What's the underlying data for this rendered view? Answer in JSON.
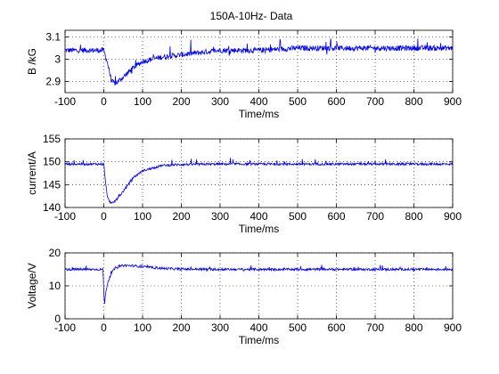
{
  "title": "150A-10Hz- Data",
  "chart_data": [
    {
      "type": "line",
      "title": "150A-10Hz- Data",
      "xlabel": "Time/ms",
      "ylabel": "B /kG",
      "xlim": [
        -100,
        900
      ],
      "ylim": [
        2.85,
        3.13
      ],
      "xticks": [
        -100,
        0,
        100,
        200,
        300,
        400,
        500,
        600,
        700,
        800,
        900
      ],
      "yticks": [
        2.9,
        3.0,
        3.1
      ],
      "ytick_labels": [
        "2.9",
        "3",
        "3.1"
      ],
      "grid": true,
      "series": [
        {
          "color": "#0000ff",
          "x": [
            -100,
            -50,
            0,
            10,
            20,
            30,
            50,
            75,
            100,
            150,
            200,
            300,
            400,
            500,
            600,
            700,
            800,
            900
          ],
          "y": [
            3.04,
            3.04,
            3.04,
            2.98,
            2.9,
            2.89,
            2.92,
            2.96,
            2.99,
            3.01,
            3.02,
            3.04,
            3.04,
            3.05,
            3.05,
            3.05,
            3.05,
            3.05
          ]
        }
      ]
    },
    {
      "type": "line",
      "xlabel": "Time/ms",
      "ylabel": "current/A",
      "xlim": [
        -100,
        900
      ],
      "ylim": [
        140,
        155
      ],
      "xticks": [
        -100,
        0,
        100,
        200,
        300,
        400,
        500,
        600,
        700,
        800,
        900
      ],
      "yticks": [
        140,
        145,
        150,
        155
      ],
      "grid": true,
      "series": [
        {
          "color": "#0000ff",
          "x": [
            -100,
            -50,
            0,
            5,
            10,
            20,
            30,
            50,
            75,
            100,
            150,
            200,
            300,
            400,
            500,
            600,
            700,
            800,
            900
          ],
          "y": [
            149.5,
            149.5,
            149.5,
            145,
            142,
            140.8,
            141.5,
            143.5,
            146.5,
            148.0,
            149.2,
            149.4,
            149.5,
            149.5,
            149.5,
            149.5,
            149.5,
            149.5,
            149.5
          ]
        }
      ]
    },
    {
      "type": "line",
      "xlabel": "Time/ms",
      "ylabel": "Voltage/V",
      "xlim": [
        -100,
        900
      ],
      "ylim": [
        0,
        20
      ],
      "xticks": [
        -100,
        0,
        100,
        200,
        300,
        400,
        500,
        600,
        700,
        800,
        900
      ],
      "yticks": [
        0,
        10,
        20
      ],
      "grid": true,
      "series": [
        {
          "color": "#0000ff",
          "x": [
            -100,
            -50,
            -2,
            0,
            2,
            5,
            10,
            20,
            30,
            50,
            75,
            100,
            150,
            200,
            300,
            400,
            500,
            600,
            700,
            800,
            900
          ],
          "y": [
            15,
            15,
            15,
            8,
            4.5,
            8,
            11,
            14,
            15.5,
            16.2,
            16.1,
            15.8,
            15.3,
            15.1,
            15,
            15,
            15,
            15,
            15,
            15,
            15
          ]
        }
      ]
    }
  ]
}
